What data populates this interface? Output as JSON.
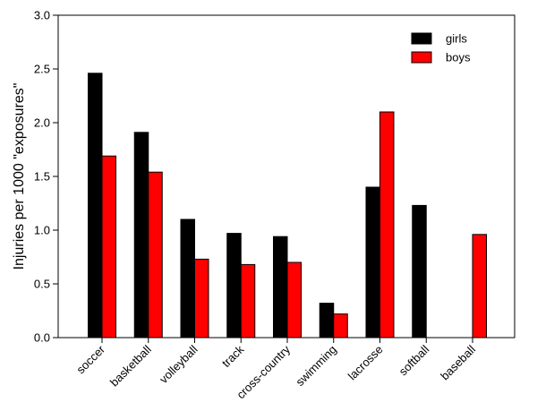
{
  "chart_data": {
    "type": "bar",
    "title": "",
    "xlabel": "",
    "ylabel": "Injuries per 1000 \"exposures\"",
    "ylim": [
      0,
      3.0
    ],
    "yticks": [
      "0.0",
      "0.5",
      "1.0",
      "1.5",
      "2.0",
      "2.5",
      "3.0"
    ],
    "ytick_values": [
      0,
      0.5,
      1.0,
      1.5,
      2.0,
      2.5,
      3.0
    ],
    "categories": [
      "soccer",
      "basketball",
      "volleyball",
      "track",
      "cross-country",
      "swimming",
      "lacrosse",
      "softball",
      "baseball"
    ],
    "series": [
      {
        "name": "girls",
        "color": "#000000",
        "values": [
          2.46,
          1.91,
          1.1,
          0.97,
          0.94,
          0.32,
          1.4,
          1.23,
          null
        ]
      },
      {
        "name": "boys",
        "color": "#ff0000",
        "values": [
          1.69,
          1.54,
          0.73,
          0.68,
          0.7,
          0.22,
          2.1,
          null,
          0.96
        ]
      }
    ],
    "legend_position": "top-right",
    "grid": false
  }
}
